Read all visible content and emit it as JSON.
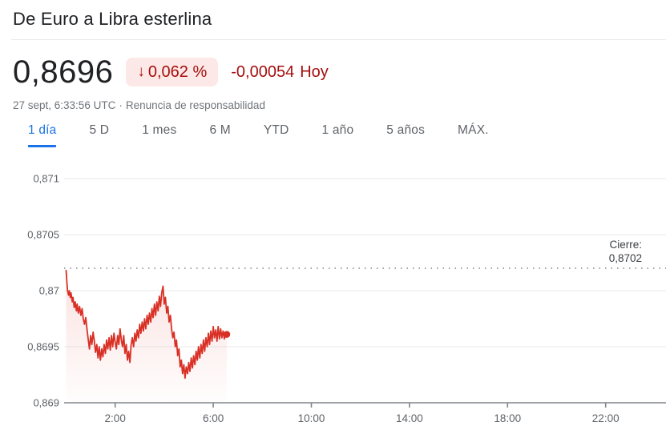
{
  "header": {
    "title": "De Euro a Libra esterlina",
    "price": "0,8696",
    "change_arrow": "↓",
    "change_percent": "0,062 %",
    "change_value": "-0,00054",
    "change_period": "Hoy",
    "timestamp": "27 sept, 6:33:56 UTC",
    "separator": "·",
    "disclaimer": "Renuncia de responsabilidad"
  },
  "colors": {
    "negative_text": "#a50e0e",
    "badge_bg": "#fce8e6",
    "line": "#d93025",
    "active_tab": "#1a73e8",
    "grid": "#e8eaed",
    "axis": "#80868b",
    "tick_text": "#5f6368",
    "close_label_text": "#3c4043"
  },
  "tabs": [
    {
      "id": "1-dia",
      "label": "1 día",
      "active": true
    },
    {
      "id": "5-d",
      "label": "5 D",
      "active": false
    },
    {
      "id": "1-mes",
      "label": "1 mes",
      "active": false
    },
    {
      "id": "6-m",
      "label": "6 M",
      "active": false
    },
    {
      "id": "ytd",
      "label": "YTD",
      "active": false
    },
    {
      "id": "1-ano",
      "label": "1 año",
      "active": false
    },
    {
      "id": "5-anos",
      "label": "5 años",
      "active": false
    },
    {
      "id": "max",
      "label": "MÁX.",
      "active": false
    }
  ],
  "chart_data": {
    "type": "line",
    "title": "De Euro a Libra esterlina — 1 día",
    "x_unit": "hours UTC",
    "xlim": [
      0,
      24
    ],
    "ylim": [
      0.869,
      0.8712
    ],
    "grid": true,
    "x_ticks": [
      {
        "t": 2,
        "label": "2:00"
      },
      {
        "t": 6,
        "label": "6:00"
      },
      {
        "t": 10,
        "label": "10:00"
      },
      {
        "t": 14,
        "label": "14:00"
      },
      {
        "t": 18,
        "label": "18:00"
      },
      {
        "t": 22,
        "label": "22:00"
      }
    ],
    "y_ticks": [
      {
        "v": 0.871,
        "label": "0,871"
      },
      {
        "v": 0.8705,
        "label": "0,8705"
      },
      {
        "v": 0.87,
        "label": "0,87"
      },
      {
        "v": 0.8695,
        "label": "0,8695"
      },
      {
        "v": 0.869,
        "label": "0,869"
      }
    ],
    "previous_close": {
      "value": 0.8702,
      "label_line1": "Cierre:",
      "label_line2": "0,8702"
    },
    "series": [
      {
        "name": "EUR/GBP",
        "points": [
          [
            0.0,
            0.87018
          ],
          [
            0.03,
            0.87008
          ],
          [
            0.06,
            0.87
          ],
          [
            0.1,
            0.86996
          ],
          [
            0.13,
            0.87
          ],
          [
            0.17,
            0.86994
          ],
          [
            0.2,
            0.86998
          ],
          [
            0.25,
            0.8699
          ],
          [
            0.28,
            0.86994
          ],
          [
            0.33,
            0.86985
          ],
          [
            0.37,
            0.8699
          ],
          [
            0.42,
            0.86982
          ],
          [
            0.45,
            0.86988
          ],
          [
            0.5,
            0.8698
          ],
          [
            0.55,
            0.86986
          ],
          [
            0.6,
            0.86978
          ],
          [
            0.65,
            0.86984
          ],
          [
            0.7,
            0.86975
          ],
          [
            0.75,
            0.8697
          ],
          [
            0.8,
            0.86976
          ],
          [
            0.85,
            0.86966
          ],
          [
            0.9,
            0.86957
          ],
          [
            0.95,
            0.86948
          ],
          [
            1.0,
            0.8696
          ],
          [
            1.05,
            0.86952
          ],
          [
            1.1,
            0.86963
          ],
          [
            1.15,
            0.86955
          ],
          [
            1.2,
            0.86945
          ],
          [
            1.25,
            0.86952
          ],
          [
            1.3,
            0.8694
          ],
          [
            1.35,
            0.8695
          ],
          [
            1.4,
            0.86938
          ],
          [
            1.45,
            0.86948
          ],
          [
            1.5,
            0.86941
          ],
          [
            1.55,
            0.86952
          ],
          [
            1.6,
            0.86944
          ],
          [
            1.65,
            0.86956
          ],
          [
            1.7,
            0.86948
          ],
          [
            1.75,
            0.86958
          ],
          [
            1.8,
            0.86947
          ],
          [
            1.85,
            0.8696
          ],
          [
            1.9,
            0.8695
          ],
          [
            1.95,
            0.86962
          ],
          [
            2.0,
            0.86954
          ],
          [
            2.05,
            0.86948
          ],
          [
            2.1,
            0.8696
          ],
          [
            2.15,
            0.86952
          ],
          [
            2.2,
            0.86966
          ],
          [
            2.25,
            0.86956
          ],
          [
            2.3,
            0.8695
          ],
          [
            2.35,
            0.8696
          ],
          [
            2.4,
            0.86944
          ],
          [
            2.45,
            0.86952
          ],
          [
            2.5,
            0.86938
          ],
          [
            2.55,
            0.86946
          ],
          [
            2.6,
            0.86936
          ],
          [
            2.65,
            0.86952
          ],
          [
            2.7,
            0.86958
          ],
          [
            2.75,
            0.8695
          ],
          [
            2.8,
            0.86962
          ],
          [
            2.85,
            0.86955
          ],
          [
            2.9,
            0.86965
          ],
          [
            2.95,
            0.86958
          ],
          [
            3.0,
            0.8697
          ],
          [
            3.05,
            0.86962
          ],
          [
            3.1,
            0.86972
          ],
          [
            3.15,
            0.86964
          ],
          [
            3.2,
            0.86975
          ],
          [
            3.25,
            0.86966
          ],
          [
            3.3,
            0.86978
          ],
          [
            3.35,
            0.8697
          ],
          [
            3.4,
            0.8698
          ],
          [
            3.45,
            0.86972
          ],
          [
            3.5,
            0.86984
          ],
          [
            3.55,
            0.86976
          ],
          [
            3.6,
            0.86988
          ],
          [
            3.65,
            0.86978
          ],
          [
            3.7,
            0.8699
          ],
          [
            3.75,
            0.86982
          ],
          [
            3.8,
            0.86995
          ],
          [
            3.85,
            0.86986
          ],
          [
            3.9,
            0.86998
          ],
          [
            3.95,
            0.87004
          ],
          [
            4.0,
            0.86988
          ],
          [
            4.05,
            0.86994
          ],
          [
            4.1,
            0.8698
          ],
          [
            4.15,
            0.86986
          ],
          [
            4.2,
            0.86972
          ],
          [
            4.25,
            0.86978
          ],
          [
            4.3,
            0.86966
          ],
          [
            4.35,
            0.86958
          ],
          [
            4.4,
            0.86963
          ],
          [
            4.45,
            0.8695
          ],
          [
            4.5,
            0.86956
          ],
          [
            4.55,
            0.86942
          ],
          [
            4.6,
            0.86948
          ],
          [
            4.65,
            0.86932
          ],
          [
            4.7,
            0.86938
          ],
          [
            4.75,
            0.86926
          ],
          [
            4.8,
            0.86934
          ],
          [
            4.85,
            0.86922
          ],
          [
            4.9,
            0.86932
          ],
          [
            4.95,
            0.86926
          ],
          [
            5.0,
            0.86936
          ],
          [
            5.05,
            0.86928
          ],
          [
            5.1,
            0.8694
          ],
          [
            5.15,
            0.86931
          ],
          [
            5.2,
            0.86942
          ],
          [
            5.25,
            0.86934
          ],
          [
            5.3,
            0.86946
          ],
          [
            5.35,
            0.86938
          ],
          [
            5.4,
            0.8695
          ],
          [
            5.45,
            0.8694
          ],
          [
            5.5,
            0.86952
          ],
          [
            5.55,
            0.86944
          ],
          [
            5.6,
            0.86956
          ],
          [
            5.65,
            0.86946
          ],
          [
            5.7,
            0.86958
          ],
          [
            5.75,
            0.8695
          ],
          [
            5.8,
            0.86962
          ],
          [
            5.85,
            0.86952
          ],
          [
            5.9,
            0.86964
          ],
          [
            5.95,
            0.86955
          ],
          [
            6.0,
            0.86968
          ],
          [
            6.05,
            0.86958
          ],
          [
            6.1,
            0.86965
          ],
          [
            6.15,
            0.86955
          ],
          [
            6.2,
            0.86968
          ],
          [
            6.25,
            0.86957
          ],
          [
            6.3,
            0.86966
          ],
          [
            6.35,
            0.86958
          ],
          [
            6.4,
            0.86964
          ],
          [
            6.45,
            0.86957
          ],
          [
            6.5,
            0.86962
          ],
          [
            6.55,
            0.86961
          ]
        ]
      }
    ],
    "end_dot": true,
    "legend": "none"
  }
}
